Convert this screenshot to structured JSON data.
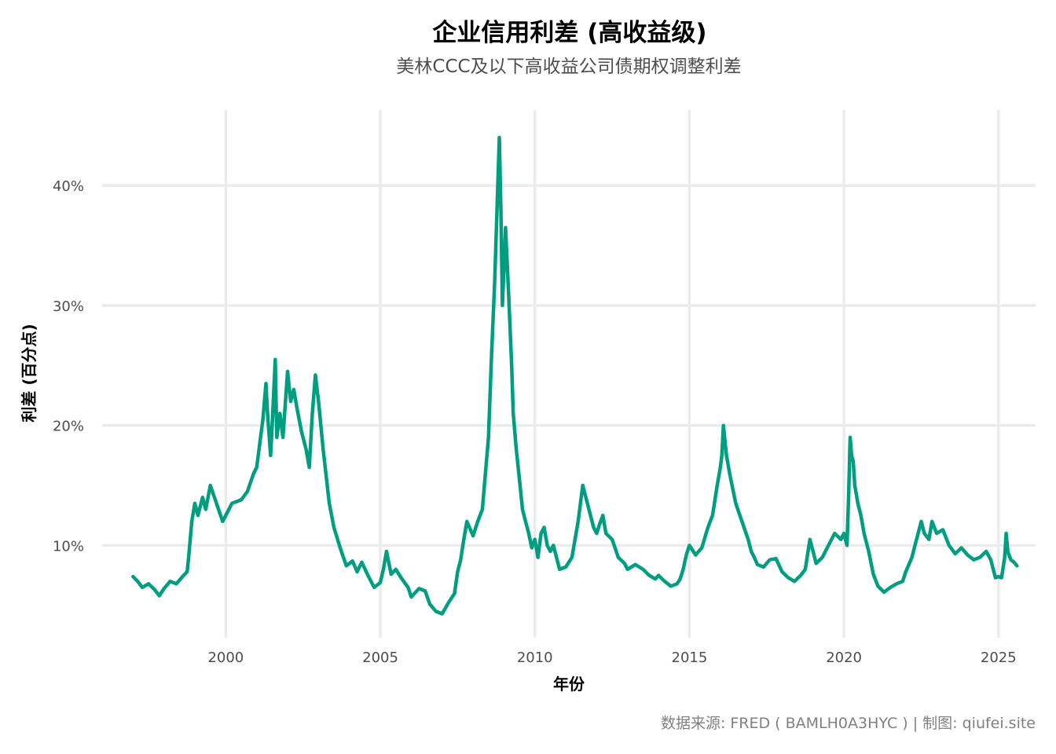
{
  "chart_data": {
    "type": "line",
    "title": "企业信用利差 (高收益级)",
    "subtitle": "美林CCC及以下高收益公司债期权调整利差",
    "xlabel": "年份",
    "ylabel": "利差 (百分点)",
    "caption": "数据来源: FRED ( BAMLH0A3HYC ) | 制图: qiufei.site",
    "line_color": "#009e80",
    "grid": true,
    "xlim": [
      1996.0,
      2026.2
    ],
    "ylim": [
      2.3,
      46.3
    ],
    "x_ticks": [
      2000,
      2005,
      2010,
      2015,
      2020,
      2025
    ],
    "x_tick_labels": [
      "2000",
      "2005",
      "2010",
      "2015",
      "2020",
      "2025"
    ],
    "y_ticks": [
      10,
      20,
      30,
      40
    ],
    "y_tick_labels": [
      "10%",
      "20%",
      "30%",
      "40%"
    ],
    "series": [
      {
        "x": [
          1997.0,
          1997.15,
          1997.3,
          1997.5,
          1997.7,
          1997.85,
          1998.0,
          1998.2,
          1998.4,
          1998.6,
          1998.75,
          1998.8,
          1998.9,
          1999.0,
          1999.1,
          1999.25,
          1999.35,
          1999.5,
          1999.7,
          1999.9,
          2000.0,
          2000.2,
          2000.5,
          2000.7,
          2000.9,
          2001.0,
          2001.1,
          2001.2,
          2001.3,
          2001.35,
          2001.45,
          2001.5,
          2001.6,
          2001.65,
          2001.75,
          2001.85,
          2002.0,
          2002.1,
          2002.2,
          2002.3,
          2002.45,
          2002.6,
          2002.7,
          2002.8,
          2002.9,
          2003.0,
          2003.15,
          2003.35,
          2003.5,
          2003.7,
          2003.9,
          2004.1,
          2004.25,
          2004.4,
          2004.6,
          2004.8,
          2005.0,
          2005.1,
          2005.2,
          2005.35,
          2005.5,
          2005.7,
          2005.9,
          2006.0,
          2006.25,
          2006.45,
          2006.6,
          2006.8,
          2007.0,
          2007.2,
          2007.4,
          2007.5,
          2007.6,
          2007.7,
          2007.8,
          2008.0,
          2008.15,
          2008.3,
          2008.5,
          2008.6,
          2008.7,
          2008.85,
          2008.9,
          2008.95,
          2009.0,
          2009.05,
          2009.15,
          2009.25,
          2009.3,
          2009.4,
          2009.5,
          2009.6,
          2009.7,
          2009.8,
          2009.9,
          2010.0,
          2010.1,
          2010.2,
          2010.3,
          2010.4,
          2010.5,
          2010.6,
          2010.8,
          2011.0,
          2011.2,
          2011.4,
          2011.55,
          2011.7,
          2011.8,
          2011.9,
          2012.0,
          2012.1,
          2012.2,
          2012.3,
          2012.5,
          2012.7,
          2012.9,
          2013.0,
          2013.25,
          2013.5,
          2013.7,
          2013.9,
          2014.0,
          2014.2,
          2014.4,
          2014.6,
          2014.7,
          2014.8,
          2014.9,
          2015.0,
          2015.2,
          2015.4,
          2015.6,
          2015.75,
          2015.9,
          2016.0,
          2016.05,
          2016.1,
          2016.2,
          2016.3,
          2016.5,
          2016.7,
          2016.9,
          2017.0,
          2017.1,
          2017.2,
          2017.4,
          2017.6,
          2017.8,
          2018.0,
          2018.2,
          2018.4,
          2018.6,
          2018.75,
          2018.9,
          2019.0,
          2019.1,
          2019.3,
          2019.5,
          2019.7,
          2019.9,
          2020.0,
          2020.1,
          2020.15,
          2020.2,
          2020.25,
          2020.3,
          2020.35,
          2020.45,
          2020.55,
          2020.65,
          2020.8,
          2020.95,
          2021.1,
          2021.3,
          2021.5,
          2021.7,
          2021.9,
          2022.0,
          2022.2,
          2022.35,
          2022.5,
          2022.6,
          2022.75,
          2022.85,
          2023.0,
          2023.2,
          2023.4,
          2023.6,
          2023.8,
          2024.0,
          2024.2,
          2024.4,
          2024.6,
          2024.75,
          2024.9,
          2025.0,
          2025.1,
          2025.2,
          2025.25,
          2025.3,
          2025.4,
          2025.5,
          2025.6
        ],
        "values": [
          7.4,
          7.0,
          6.5,
          6.8,
          6.3,
          5.8,
          6.4,
          7.0,
          6.8,
          7.4,
          7.8,
          9.0,
          12.0,
          13.5,
          12.5,
          14.0,
          13.0,
          15.0,
          13.5,
          12.0,
          12.5,
          13.5,
          13.8,
          14.5,
          16.0,
          16.5,
          18.5,
          20.5,
          23.5,
          21.0,
          17.5,
          20.0,
          25.5,
          19.0,
          21.0,
          19.0,
          24.5,
          22.0,
          23.0,
          21.5,
          19.5,
          18.0,
          16.5,
          21.0,
          24.2,
          22.0,
          18.0,
          13.5,
          11.5,
          9.8,
          8.3,
          8.7,
          7.8,
          8.6,
          7.5,
          6.5,
          6.9,
          8.0,
          9.5,
          7.6,
          8.0,
          7.2,
          6.5,
          5.7,
          6.4,
          6.2,
          5.1,
          4.5,
          4.3,
          5.2,
          6.0,
          7.8,
          8.8,
          10.5,
          12.0,
          10.8,
          12.0,
          13.0,
          19.0,
          26.0,
          32.0,
          44.0,
          38.0,
          30.0,
          33.0,
          36.5,
          31.0,
          25.0,
          21.0,
          18.0,
          15.5,
          13.0,
          12.0,
          11.0,
          9.8,
          10.5,
          9.0,
          11.0,
          11.5,
          10.0,
          9.5,
          10.0,
          8.0,
          8.2,
          9.0,
          12.0,
          15.0,
          13.5,
          12.5,
          11.5,
          11.0,
          11.8,
          12.5,
          11.0,
          10.5,
          9.0,
          8.5,
          8.0,
          8.4,
          8.0,
          7.5,
          7.2,
          7.5,
          7.0,
          6.6,
          6.8,
          7.2,
          8.0,
          9.2,
          10.0,
          9.2,
          9.8,
          11.5,
          12.5,
          15.0,
          16.5,
          17.5,
          20.0,
          17.5,
          16.0,
          13.5,
          12.0,
          10.5,
          9.5,
          9.0,
          8.4,
          8.2,
          8.8,
          8.9,
          7.8,
          7.3,
          7.0,
          7.5,
          8.0,
          10.5,
          9.5,
          8.5,
          9.0,
          10.0,
          11.0,
          10.5,
          11.0,
          10.0,
          14.0,
          19.0,
          17.5,
          17.0,
          15.0,
          13.5,
          12.5,
          11.0,
          9.5,
          7.6,
          6.6,
          6.1,
          6.5,
          6.8,
          7.0,
          7.8,
          9.0,
          10.5,
          12.0,
          11.0,
          10.5,
          12.0,
          11.0,
          11.3,
          10.0,
          9.3,
          9.8,
          9.2,
          8.8,
          9.0,
          9.5,
          8.8,
          7.3,
          7.4,
          7.3,
          9.0,
          11.0,
          9.5,
          8.8,
          8.6,
          8.3
        ]
      }
    ]
  }
}
